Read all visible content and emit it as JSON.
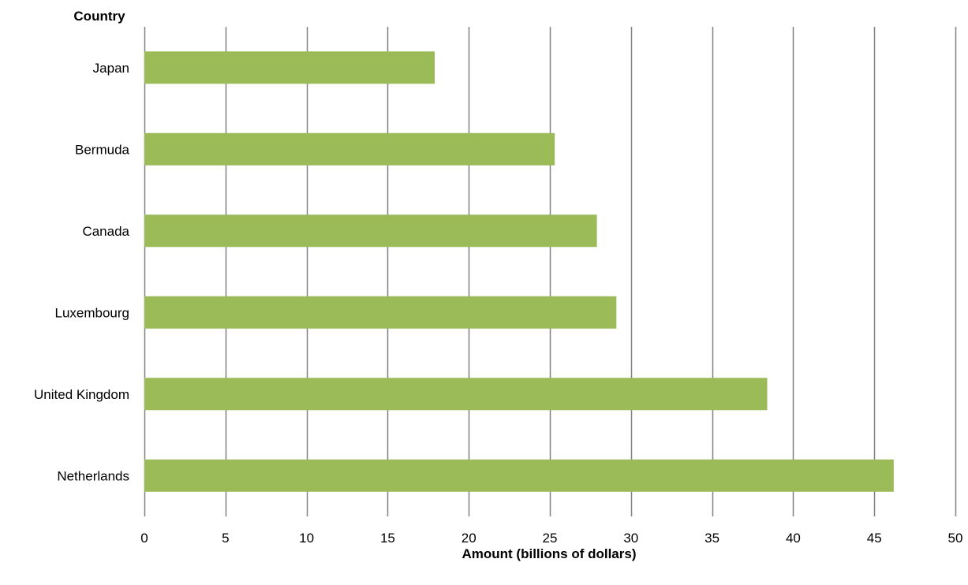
{
  "chart_data": {
    "type": "bar",
    "orientation": "horizontal",
    "categories": [
      "Japan",
      "Bermuda",
      "Canada",
      "Luxembourg",
      "United Kingdom",
      "Netherlands"
    ],
    "values": [
      17.9,
      25.3,
      27.9,
      29.1,
      38.4,
      46.2
    ],
    "xlabel": "Amount (billions of dollars)",
    "ylabel": "Country",
    "xlim": [
      0,
      50
    ],
    "xticks": [
      0,
      5,
      10,
      15,
      20,
      25,
      30,
      35,
      40,
      45,
      50
    ],
    "grid": "vertical",
    "bar_color": "#9BBB59",
    "grid_color": "#808080"
  }
}
